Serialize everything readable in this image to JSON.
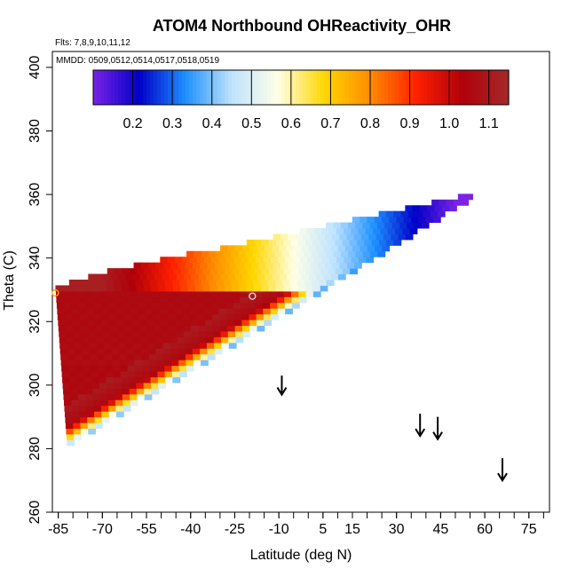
{
  "chart_data": {
    "type": "heatmap",
    "title": "ATOM4 Northbound OHReactivity_OHR",
    "flights_note": "Flts: 7,8,9,10,11,12",
    "mmdd_note": "MMDD: 0509,0512,0514,0517,0518,0519",
    "xlabel": "Latitude (deg N)",
    "ylabel": "Theta (C)",
    "xlim": [
      -87,
      82
    ],
    "ylim": [
      260,
      405
    ],
    "x_tick_labels": [
      "-85",
      "-70",
      "-55",
      "-40",
      "-25",
      "-10",
      "5",
      "15",
      "30",
      "45",
      "60",
      "75"
    ],
    "x_tick_values": [
      -85,
      -70,
      -55,
      -40,
      -25,
      -10,
      5,
      15,
      30,
      45,
      60,
      75
    ],
    "x_minor_step": 5,
    "y_tick_labels": [
      "260",
      "280",
      "300",
      "320",
      "340",
      "360",
      "380",
      "400"
    ],
    "y_tick_values": [
      260,
      280,
      300,
      320,
      340,
      360,
      380,
      400
    ],
    "colorbar": {
      "range": [
        0.1,
        1.15
      ],
      "tick_labels": [
        "0.2",
        "0.3",
        "0.4",
        "0.5",
        "0.6",
        "0.7",
        "0.8",
        "0.9",
        "1.0",
        "1.1"
      ],
      "tick_values": [
        0.2,
        0.3,
        0.4,
        0.5,
        0.6,
        0.7,
        0.8,
        0.9,
        1.0,
        1.1
      ],
      "colors": [
        "#7a22e6",
        "#0000c8",
        "#1e90ff",
        "#bfe3ff",
        "#ffffe6",
        "#ffd700",
        "#ff8c00",
        "#ff2000",
        "#b0000a",
        "#a52a2a"
      ]
    },
    "field": {
      "lower_vertex": {
        "lat": -82,
        "theta": 281
      },
      "left_top": {
        "lat": -86,
        "theta": 331
      },
      "apex": {
        "lat": 55,
        "theta": 359
      },
      "interior_value": 1.05
    },
    "markers": [
      {
        "lat": -86,
        "theta": 329,
        "color": "#ffa500"
      },
      {
        "lat": -19,
        "theta": 328,
        "color": "#dddddd"
      }
    ],
    "arrows": [
      {
        "lat": -9,
        "theta_top": 303,
        "theta_bottom": 297
      },
      {
        "lat": 38,
        "theta_top": 291,
        "theta_bottom": 284
      },
      {
        "lat": 44,
        "theta_top": 290,
        "theta_bottom": 283
      },
      {
        "lat": 66,
        "theta_top": 277,
        "theta_bottom": 270
      }
    ]
  }
}
